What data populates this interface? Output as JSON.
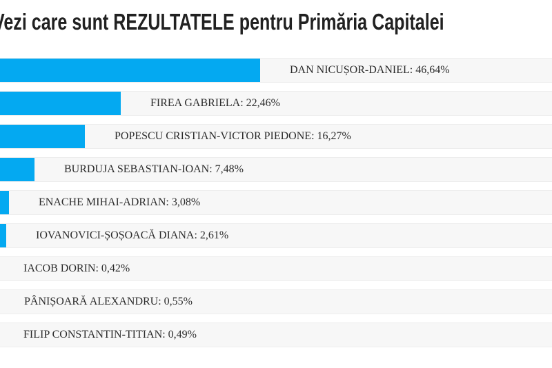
{
  "title": "Vezi care sunt REZULTATELE pentru Primăria Capitalei",
  "chart_data": {
    "type": "bar",
    "orientation": "horizontal",
    "title": "Vezi care sunt REZULTATELE pentru Primăria Capitalei",
    "categories": [
      "DAN NICUȘOR-DANIEL",
      "FIREA GABRIELA",
      "POPESCU CRISTIAN-VICTOR PIEDONE",
      "BURDUJA SEBASTIAN-IOAN",
      "ENACHE MIHAI-ADRIAN",
      "IOVANOVICI-ȘOȘOACĂ DIANA",
      "IACOB DORIN",
      "PÂNIȘOARĂ ALEXANDRU",
      "FILIP CONSTANTIN-TITIAN"
    ],
    "values": [
      46.64,
      22.46,
      16.27,
      7.48,
      3.08,
      2.61,
      0.42,
      0.55,
      0.49
    ],
    "value_labels": [
      "46,64%",
      "22,46%",
      "16,27%",
      "7,48%",
      "3,08%",
      "2,61%",
      "0,42%",
      "0,55%",
      "0,49%"
    ],
    "label_separator": ": ",
    "xlabel": "",
    "ylabel": "",
    "xlim": [
      0,
      100
    ],
    "grid": false,
    "legend": false,
    "bar_color": "#04a9f1",
    "track_color": "#f7f7f7",
    "title_color": "#212121",
    "label_color": "#2b2b2b"
  }
}
